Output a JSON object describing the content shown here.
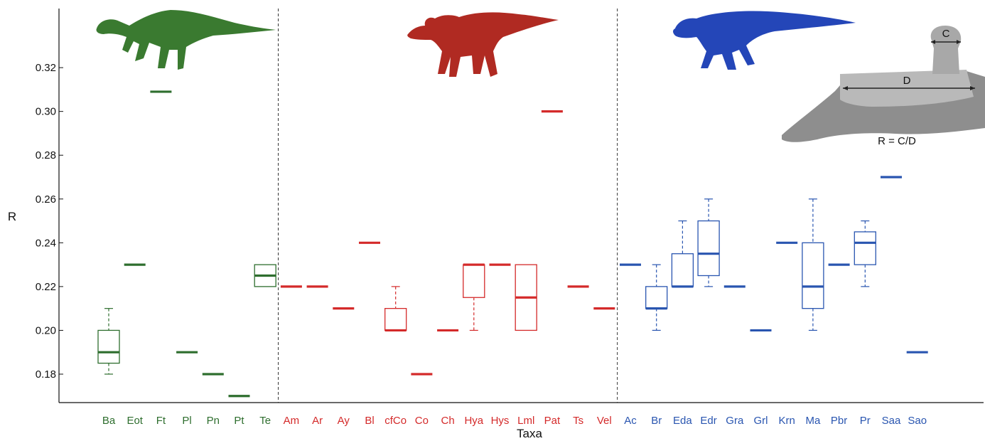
{
  "chart_data": {
    "type": "box",
    "xlabel": "Taxa",
    "ylabel": "R",
    "ylim": [
      0.167,
      0.347
    ],
    "yticks": [
      "0.18",
      "0.20",
      "0.22",
      "0.24",
      "0.26",
      "0.28",
      "0.30",
      "0.32"
    ],
    "grid": false,
    "colors": {
      "green": "#2e6e2e",
      "red": "#d42a2a",
      "blue": "#2955b0"
    },
    "groups": [
      {
        "color": "green",
        "taxa": [
          {
            "label": "Ba",
            "whisker": [
              0.18,
              0.21
            ],
            "box": [
              0.185,
              0.2
            ],
            "median": 0.19
          },
          {
            "label": "Eot",
            "median": 0.23
          },
          {
            "label": "Ft",
            "median": 0.309
          },
          {
            "label": "Pl",
            "median": 0.19
          },
          {
            "label": "Pn",
            "median": 0.18
          },
          {
            "label": "Pt",
            "median": 0.17
          },
          {
            "label": "Te",
            "box": [
              0.22,
              0.23
            ],
            "median": 0.225
          }
        ]
      },
      {
        "color": "red",
        "taxa": [
          {
            "label": "Am",
            "median": 0.22
          },
          {
            "label": "Ar",
            "median": 0.22
          },
          {
            "label": "Ay",
            "median": 0.21
          },
          {
            "label": "Bl",
            "median": 0.24
          },
          {
            "label": "cfCo",
            "whisker": [
              0.2,
              0.22
            ],
            "box": [
              0.2,
              0.21
            ],
            "median": 0.2
          },
          {
            "label": "Co",
            "median": 0.18
          },
          {
            "label": "Ch",
            "median": 0.2
          },
          {
            "label": "Hya",
            "whisker": [
              0.2,
              0.23
            ],
            "box": [
              0.215,
              0.23
            ],
            "median": 0.23
          },
          {
            "label": "Hys",
            "median": 0.23
          },
          {
            "label": "Lml",
            "box": [
              0.2,
              0.23
            ],
            "median": 0.215
          },
          {
            "label": "Pat",
            "median": 0.3
          },
          {
            "label": "Ts",
            "median": 0.22
          },
          {
            "label": "Vel",
            "median": 0.21
          }
        ]
      },
      {
        "color": "blue",
        "taxa": [
          {
            "label": "Ac",
            "median": 0.23
          },
          {
            "label": "Br",
            "whisker": [
              0.2,
              0.23
            ],
            "box": [
              0.21,
              0.22
            ],
            "median": 0.21
          },
          {
            "label": "Eda",
            "whisker": [
              0.22,
              0.25
            ],
            "box": [
              0.22,
              0.235
            ],
            "median": 0.22
          },
          {
            "label": "Edr",
            "whisker": [
              0.22,
              0.26
            ],
            "box": [
              0.225,
              0.25
            ],
            "median": 0.235
          },
          {
            "label": "Gra",
            "median": 0.22
          },
          {
            "label": "Grl",
            "median": 0.2
          },
          {
            "label": "Krn",
            "median": 0.24
          },
          {
            "label": "Ma",
            "whisker": [
              0.2,
              0.26
            ],
            "box": [
              0.21,
              0.24
            ],
            "median": 0.22
          },
          {
            "label": "Pbr",
            "median": 0.23
          },
          {
            "label": "Pr",
            "whisker": [
              0.22,
              0.25
            ],
            "box": [
              0.23,
              0.245
            ],
            "median": 0.24
          },
          {
            "label": "Saa",
            "median": 0.27
          },
          {
            "label": "Sao",
            "median": 0.19
          }
        ]
      }
    ],
    "inset": {
      "label_c": "C",
      "label_d": "D",
      "formula": "R = C/D"
    }
  }
}
